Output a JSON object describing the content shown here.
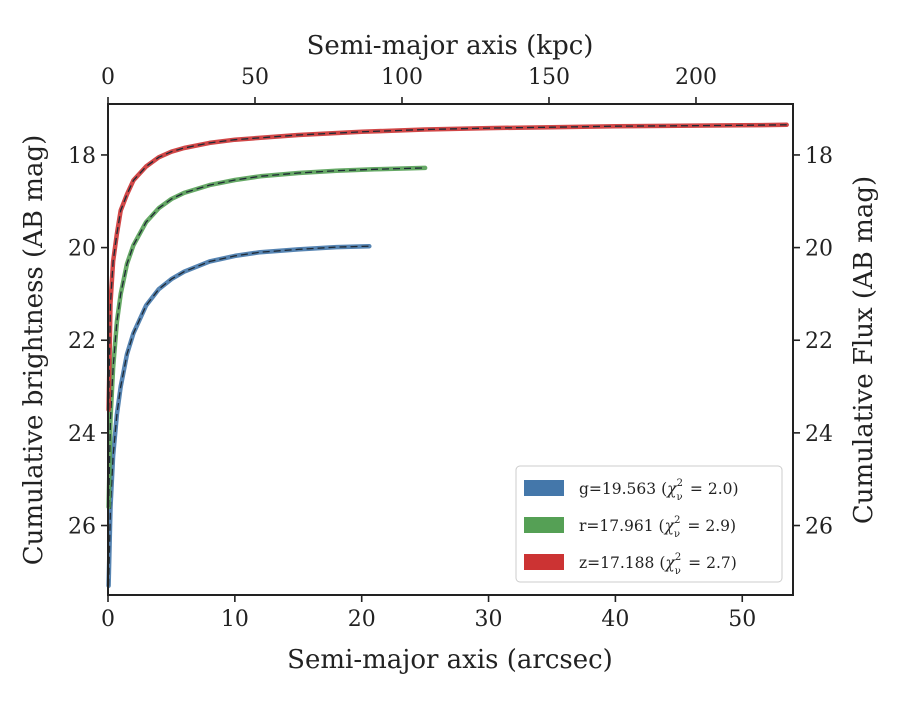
{
  "chart_data": {
    "type": "line",
    "xlabel": "Semi-major axis (arcsec)",
    "x2label": "Semi-major axis (kpc)",
    "ylabel": "Cumulative brightness (AB mag)",
    "y2label": "Cumulative Flux (AB mag)",
    "xlim": [
      0,
      54
    ],
    "x2lim": [
      0,
      233
    ],
    "ylim": [
      27.5,
      16.9
    ],
    "y_inverted": true,
    "xticks": [
      0,
      10,
      20,
      30,
      40,
      50
    ],
    "x2ticks": [
      0,
      50,
      100,
      150,
      200
    ],
    "yticks": [
      18,
      20,
      22,
      24,
      26
    ],
    "legend_position": "lower-right",
    "series": [
      {
        "name": "g=19.563 (χ²_ν = 2.0)",
        "name_prefix": "g=19.563 (",
        "name_sub": "2.0",
        "color": "#4477aa",
        "x": [
          0.05,
          0.2,
          0.4,
          0.7,
          1.0,
          1.5,
          2.0,
          3.0,
          4.0,
          5.0,
          6.0,
          8.0,
          10.0,
          12.0,
          15.0,
          18.0,
          20.6
        ],
        "y": [
          27.3,
          25.6,
          24.5,
          23.6,
          23.0,
          22.3,
          21.85,
          21.25,
          20.9,
          20.68,
          20.52,
          20.3,
          20.18,
          20.1,
          20.04,
          19.99,
          19.97
        ]
      },
      {
        "name": "r=17.961 (χ²_ν = 2.9)",
        "name_prefix": "r=17.961 (",
        "name_sub": "2.9",
        "color": "#55a055",
        "x": [
          0.05,
          0.2,
          0.4,
          0.7,
          1.0,
          1.5,
          2.0,
          3.0,
          4.0,
          5.0,
          6.0,
          8.0,
          10.0,
          12.0,
          15.0,
          18.0,
          21.0,
          25.0
        ],
        "y": [
          25.6,
          23.7,
          22.6,
          21.6,
          21.0,
          20.35,
          19.95,
          19.45,
          19.15,
          18.95,
          18.82,
          18.65,
          18.54,
          18.46,
          18.39,
          18.34,
          18.31,
          18.28
        ]
      },
      {
        "name": "z=17.188 (χ²_ν = 2.7)",
        "name_prefix": "z=17.188 (",
        "name_sub": "2.7",
        "color": "#cc3333",
        "x": [
          0.05,
          0.2,
          0.4,
          0.7,
          1.0,
          1.5,
          2.0,
          3.0,
          4.0,
          5.0,
          6.0,
          8.0,
          10.0,
          15.0,
          20.0,
          25.0,
          30.0,
          35.0,
          40.0,
          45.0,
          50.0,
          53.5
        ],
        "y": [
          23.5,
          21.2,
          20.3,
          19.7,
          19.2,
          18.85,
          18.55,
          18.25,
          18.05,
          17.93,
          17.85,
          17.74,
          17.67,
          17.57,
          17.5,
          17.45,
          17.42,
          17.4,
          17.38,
          17.37,
          17.36,
          17.35
        ]
      }
    ]
  }
}
